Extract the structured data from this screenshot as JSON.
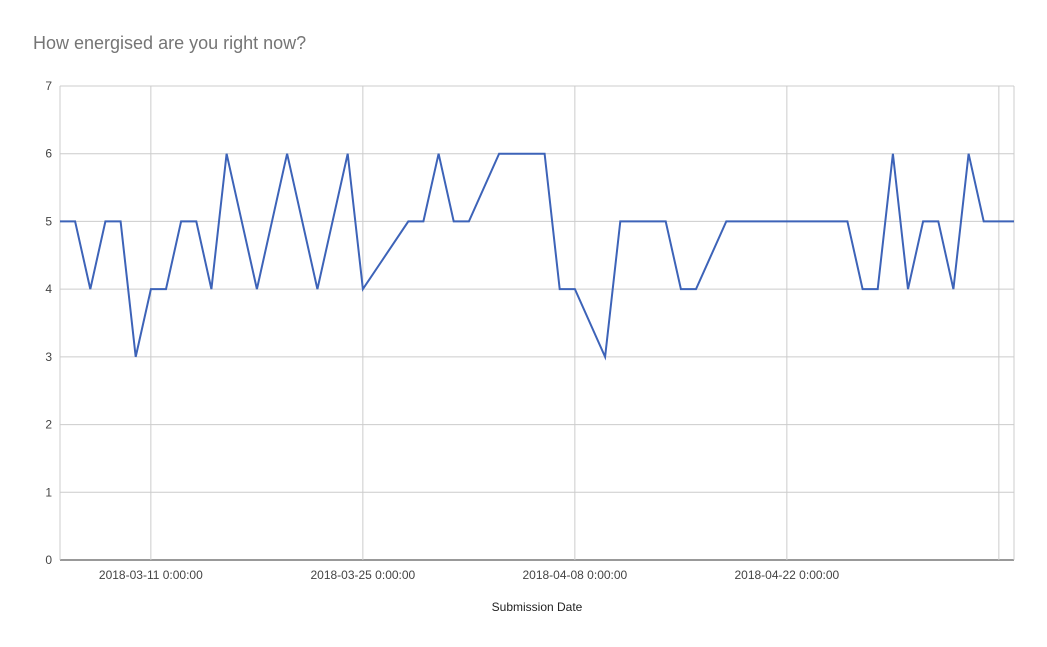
{
  "chart_data": {
    "type": "line",
    "title": "How energised are you right now?",
    "xlabel": "Submission Date",
    "ylabel": "",
    "ylim": [
      0,
      7
    ],
    "yticks": [
      0,
      1,
      2,
      3,
      4,
      5,
      6,
      7
    ],
    "xlim": [
      "2018-03-05",
      "2018-05-07"
    ],
    "xticks": [
      "2018-03-11 0:00:00",
      "2018-03-25 0:00:00",
      "2018-04-08 0:00:00",
      "2018-04-22 0:00:00"
    ],
    "grid": true,
    "series_color": "#3d63b8",
    "series": [
      {
        "x": [
          "2018-03-05",
          "2018-03-06",
          "2018-03-07",
          "2018-03-08",
          "2018-03-09",
          "2018-03-10",
          "2018-03-11",
          "2018-03-12",
          "2018-03-13",
          "2018-03-14",
          "2018-03-15",
          "2018-03-16",
          "2018-03-18",
          "2018-03-20",
          "2018-03-22",
          "2018-03-24",
          "2018-03-25",
          "2018-03-28",
          "2018-03-29",
          "2018-03-30",
          "2018-03-31",
          "2018-04-01",
          "2018-04-03",
          "2018-04-06",
          "2018-04-07",
          "2018-04-08",
          "2018-04-10",
          "2018-04-11",
          "2018-04-14",
          "2018-04-15",
          "2018-04-16",
          "2018-04-18",
          "2018-04-22",
          "2018-04-26",
          "2018-04-27",
          "2018-04-28",
          "2018-04-29",
          "2018-04-30",
          "2018-05-01",
          "2018-05-02",
          "2018-05-03",
          "2018-05-04",
          "2018-05-05",
          "2018-05-06",
          "2018-05-07"
        ],
        "values": [
          5,
          5,
          4,
          5,
          5,
          3,
          4,
          4,
          5,
          5,
          4,
          6,
          4,
          6,
          4,
          6,
          4,
          5,
          5,
          6,
          5,
          5,
          6,
          6,
          4,
          4,
          3,
          5,
          5,
          4,
          4,
          5,
          5,
          5,
          4,
          4,
          6,
          4,
          5,
          5,
          4,
          6,
          5,
          5,
          5
        ]
      }
    ]
  }
}
